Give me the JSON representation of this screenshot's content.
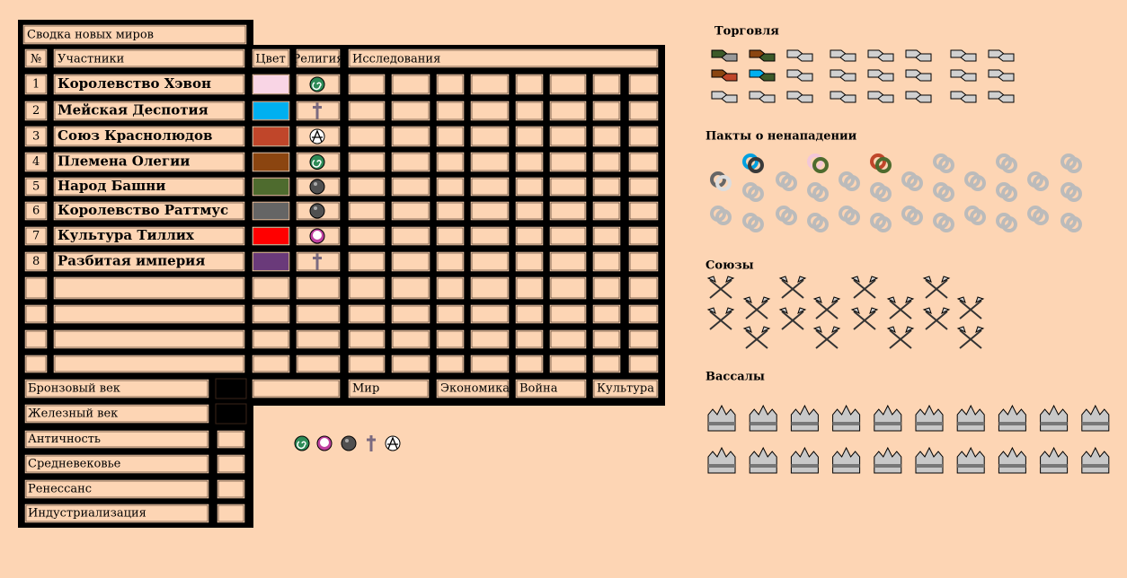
{
  "title": "Сводка новых миров",
  "headers": {
    "number": "№",
    "participants": "Участники",
    "color": "Цвет",
    "religion": "Религия",
    "research": "Исследования"
  },
  "rows": [
    {
      "number": 1,
      "name": "Королевство Хэвон",
      "color": "#f9d5e5"
    },
    {
      "number": 2,
      "name": "Мейская Деспотия",
      "color": "#00b0f0"
    },
    {
      "number": 3,
      "name": "Союз Краснолюдов",
      "color": "#c0462a"
    },
    {
      "number": 4,
      "name": "Племена Олегии",
      "color": "#8b4510"
    },
    {
      "number": 5,
      "name": "Народ Башни",
      "color": "#4e6b2e"
    },
    {
      "number": 6,
      "name": "Королевство Раттмус",
      "color": "#656565"
    },
    {
      "number": 7,
      "name": "Культура Тиллих",
      "color": "#ff0000"
    },
    {
      "number": 8,
      "name": "Разбитая империя",
      "color": "#6a3a7a"
    }
  ],
  "ages": [
    {
      "label": "Бронзовый век",
      "box_color": "#000000"
    },
    {
      "label": "Железный век",
      "box_color": "#000000"
    },
    {
      "label": "Античность",
      "box_color": "#fdd5b4"
    },
    {
      "label": "Средневековье",
      "box_color": "#fdd5b4"
    },
    {
      "label": "Ренессанс",
      "box_color": "#fdd5b4"
    },
    {
      "label": "Индустриализация",
      "box_color": "#fdd5b4"
    }
  ],
  "categories": [
    "Мир",
    "Экономика",
    "Война",
    "Культура"
  ],
  "sections": [
    "Торговля",
    "Пакты о ненападении",
    "Союзы",
    "Вассалы"
  ]
}
